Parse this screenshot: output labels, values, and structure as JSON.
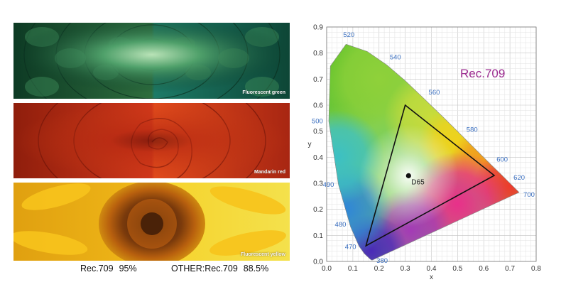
{
  "photos": [
    {
      "caption": "Fluorescent green"
    },
    {
      "caption": "Mandarin red"
    },
    {
      "caption": "Fluorescent yellow"
    }
  ],
  "coverage": {
    "left_label": "Rec.709",
    "left_value": "95%",
    "right_label": "OTHER:Rec.709",
    "right_value": "88.5%"
  },
  "chart_data": {
    "type": "scatter",
    "title": "Rec.709",
    "title_color": "#9b2a8f",
    "xlabel": "x",
    "ylabel": "y",
    "xlim": [
      0,
      0.8
    ],
    "ylim": [
      0,
      0.9
    ],
    "xticks": [
      "0.0",
      "0.1",
      "0.2",
      "0.3",
      "0.4",
      "0.5",
      "0.6",
      "0.7",
      "0.8"
    ],
    "yticks": [
      "0.0",
      "0.1",
      "0.2",
      "0.3",
      "0.4",
      "0.5",
      "0.6",
      "0.7",
      "0.8",
      "0.9"
    ],
    "grid": true,
    "spectral_locus": [
      [
        0.174,
        0.005
      ],
      [
        0.172,
        0.005
      ],
      [
        0.166,
        0.009
      ],
      [
        0.144,
        0.03
      ],
      [
        0.124,
        0.058
      ],
      [
        0.091,
        0.133
      ],
      [
        0.045,
        0.295
      ],
      [
        0.008,
        0.538
      ],
      [
        0.014,
        0.75
      ],
      [
        0.074,
        0.834
      ],
      [
        0.155,
        0.806
      ],
      [
        0.23,
        0.754
      ],
      [
        0.302,
        0.692
      ],
      [
        0.373,
        0.624
      ],
      [
        0.444,
        0.555
      ],
      [
        0.512,
        0.487
      ],
      [
        0.575,
        0.424
      ],
      [
        0.627,
        0.372
      ],
      [
        0.666,
        0.334
      ],
      [
        0.692,
        0.308
      ],
      [
        0.735,
        0.265
      ]
    ],
    "wavelength_labels": [
      {
        "label": "380",
        "x": 0.174,
        "y": 0.005
      },
      {
        "label": "470",
        "x": 0.124,
        "y": 0.058
      },
      {
        "label": "480",
        "x": 0.091,
        "y": 0.133
      },
      {
        "label": "490",
        "x": 0.045,
        "y": 0.295
      },
      {
        "label": "500",
        "x": 0.008,
        "y": 0.538
      },
      {
        "label": "520",
        "x": 0.074,
        "y": 0.834
      },
      {
        "label": "540",
        "x": 0.23,
        "y": 0.754
      },
      {
        "label": "560",
        "x": 0.373,
        "y": 0.624
      },
      {
        "label": "580",
        "x": 0.512,
        "y": 0.487
      },
      {
        "label": "600",
        "x": 0.627,
        "y": 0.372
      },
      {
        "label": "620",
        "x": 0.692,
        "y": 0.308
      },
      {
        "label": "700",
        "x": 0.735,
        "y": 0.265
      }
    ],
    "gamut": [
      [
        0.64,
        0.33
      ],
      [
        0.3,
        0.6
      ],
      [
        0.15,
        0.06
      ]
    ],
    "white_point": {
      "label": "D65",
      "x": 0.3127,
      "y": 0.329
    },
    "label_color": "#3a6fc0"
  }
}
